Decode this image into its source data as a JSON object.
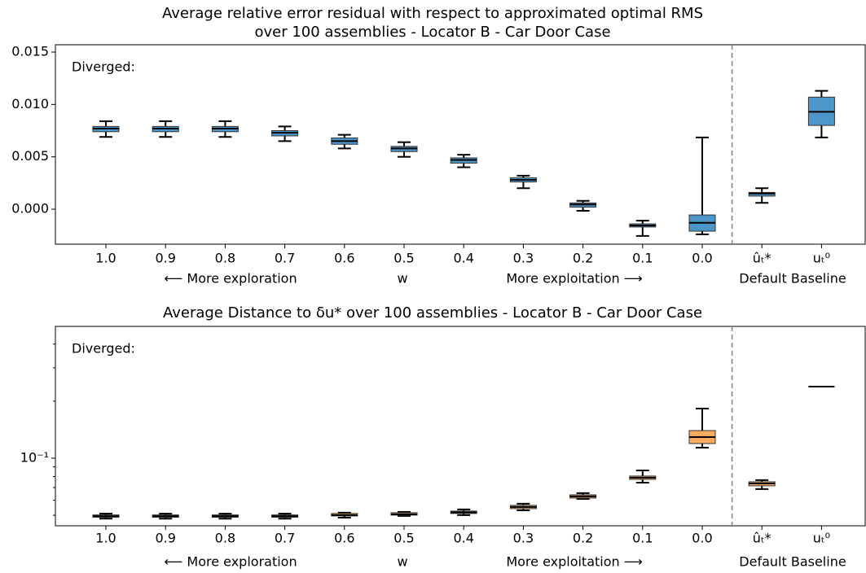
{
  "chart_data": [
    {
      "type": "box",
      "title": [
        "Average relative error residual with respect to approximated optimal RMS",
        "over 100 assemblies - Locator B - Car Door Case"
      ],
      "annotation": "Diverged:",
      "categories": [
        "1.0",
        "0.9",
        "0.8",
        "0.7",
        "0.6",
        "0.5",
        "0.4",
        "0.3",
        "0.2",
        "0.1",
        "0.0",
        "ûₜ*",
        "uₜ⁰"
      ],
      "x_annotations": [
        "⟵  More exploration",
        "w",
        "More exploitation  ⟶",
        "Default Baseline"
      ],
      "color": "#4c96c9",
      "ylim": [
        -0.00334,
        0.0157
      ],
      "yticks": [
        {
          "value": 0,
          "label": "0.000"
        },
        {
          "value": 0.005,
          "label": "0.005"
        },
        {
          "value": 0.01,
          "label": "0.010"
        },
        {
          "value": 0.015,
          "label": "0.015"
        }
      ],
      "log_y": false,
      "values": [
        [
          0.0069,
          0.0074,
          0.0077,
          0.0079,
          0.0084
        ],
        [
          0.0069,
          0.0074,
          0.0077,
          0.0079,
          0.0084
        ],
        [
          0.0069,
          0.0074,
          0.0077,
          0.0079,
          0.0084
        ],
        [
          0.0065,
          0.007,
          0.0073,
          0.0075,
          0.0079
        ],
        [
          0.0058,
          0.0062,
          0.0065,
          0.0068,
          0.0071
        ],
        [
          0.005,
          0.0055,
          0.0058,
          0.006,
          0.0064
        ],
        [
          0.004,
          0.0044,
          0.0047,
          0.0049,
          0.0052
        ],
        [
          0.002,
          0.0026,
          0.0028,
          0.003,
          0.0032
        ],
        [
          -0.00015,
          0.0002,
          0.00045,
          0.0006,
          0.0008
        ],
        [
          -0.00255,
          -0.0017,
          -0.00155,
          -0.0014,
          -0.0011
        ],
        [
          -0.0024,
          -0.0021,
          -0.0013,
          -0.00055,
          0.00685
        ],
        [
          0.0006,
          0.00125,
          0.0015,
          0.0016,
          0.002
        ],
        [
          0.00685,
          0.008,
          0.0093,
          0.0107,
          0.0113
        ]
      ]
    },
    {
      "type": "box",
      "title": [
        "Average Distance to δu* over 100 assemblies - Locator B - Car Door Case"
      ],
      "annotation": "Diverged:",
      "categories": [
        "1.0",
        "0.9",
        "0.8",
        "0.7",
        "0.6",
        "0.5",
        "0.4",
        "0.3",
        "0.2",
        "0.1",
        "0.0",
        "ûₜ*",
        "uₜ⁰"
      ],
      "x_annotations": [
        "⟵  More exploration",
        "w",
        "More exploitation  ⟶",
        "Default Baseline"
      ],
      "color": "#f9ac5e",
      "ylim": [
        0.044,
        0.496
      ],
      "yticks": [
        {
          "value": 0.1,
          "label": "10⁻¹"
        }
      ],
      "yminorticks": [
        0.05,
        0.06,
        0.07,
        0.08,
        0.09,
        0.2,
        0.3,
        0.4
      ],
      "log_y": true,
      "values": [
        [
          0.048,
          0.0488,
          0.0495,
          0.0502,
          0.051
        ],
        [
          0.048,
          0.0488,
          0.0495,
          0.0502,
          0.051
        ],
        [
          0.048,
          0.0488,
          0.0495,
          0.0502,
          0.051
        ],
        [
          0.048,
          0.0488,
          0.0495,
          0.0502,
          0.051
        ],
        [
          0.0486,
          0.0496,
          0.0501,
          0.0511,
          0.0516
        ],
        [
          0.0496,
          0.0501,
          0.0506,
          0.0516,
          0.0521
        ],
        [
          0.0501,
          0.0511,
          0.0518,
          0.0526,
          0.0537
        ],
        [
          0.0531,
          0.0542,
          0.0553,
          0.0564,
          0.0575
        ],
        [
          0.061,
          0.0616,
          0.0629,
          0.0641,
          0.0654
        ],
        [
          0.0743,
          0.0773,
          0.0789,
          0.0805,
          0.0862
        ],
        [
          0.1137,
          0.1195,
          0.1293,
          0.1399,
          0.1828
        ],
        [
          0.0687,
          0.0715,
          0.0736,
          0.0751,
          0.0766
        ],
        [
          0.2385,
          0.2385,
          0.2385,
          0.2385,
          0.2385
        ]
      ]
    }
  ]
}
